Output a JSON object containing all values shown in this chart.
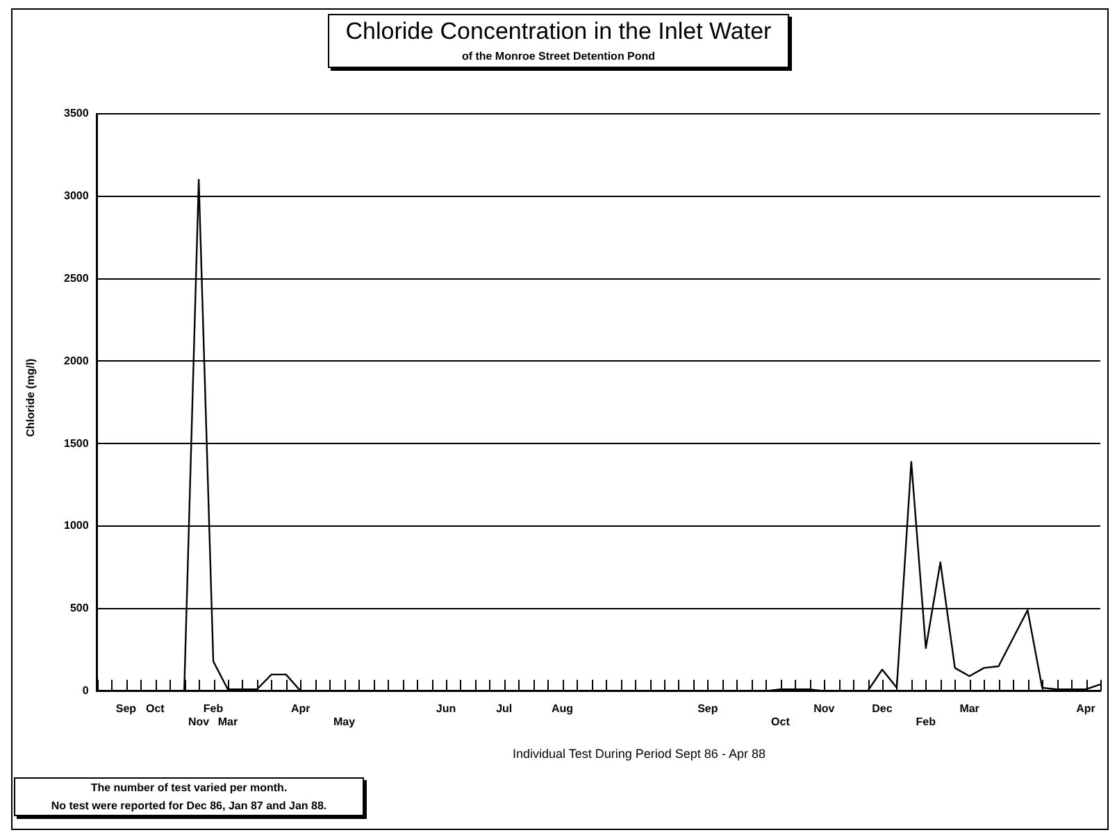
{
  "chart_data": {
    "type": "line",
    "title": "Chloride Concentration in the Inlet Water",
    "subtitle": "of the Monroe Street Detention Pond",
    "xlabel": "Individual Test During Period Sept 86 - Apr 88",
    "ylabel": "Chloride (mg/l)",
    "categories": [
      null,
      null,
      "Sep",
      null,
      "Oct",
      null,
      null,
      "Nov",
      "Feb",
      "Mar",
      null,
      null,
      null,
      null,
      "Apr",
      null,
      null,
      "May",
      null,
      null,
      null,
      null,
      null,
      null,
      "Jun",
      null,
      null,
      null,
      "Jul",
      null,
      null,
      null,
      "Aug",
      null,
      null,
      null,
      null,
      null,
      null,
      null,
      null,
      null,
      "Sep",
      null,
      null,
      null,
      null,
      "Oct",
      null,
      null,
      "Nov",
      null,
      null,
      null,
      "Dec",
      null,
      null,
      "Feb",
      null,
      null,
      "Mar",
      null,
      null,
      null,
      null,
      null,
      null,
      null,
      "Apr",
      null
    ],
    "series": [
      {
        "color": "#000000",
        "values": [
          0,
          0,
          0,
          0,
          0,
          0,
          0,
          3100,
          180,
          10,
          10,
          10,
          100,
          100,
          0,
          0,
          0,
          0,
          0,
          0,
          0,
          0,
          0,
          0,
          0,
          0,
          0,
          0,
          0,
          0,
          0,
          0,
          0,
          0,
          0,
          0,
          0,
          0,
          0,
          0,
          0,
          0,
          0,
          0,
          0,
          0,
          0,
          10,
          10,
          10,
          0,
          0,
          0,
          0,
          130,
          20,
          1390,
          260,
          780,
          140,
          90,
          140,
          150,
          320,
          490,
          20,
          10,
          10,
          10,
          40
        ]
      }
    ],
    "ylim": [
      0,
      3500
    ],
    "yticks": [
      0,
      500,
      1000,
      1500,
      2000,
      2500,
      3000,
      3500
    ],
    "grid": "y",
    "legend": false,
    "marker": "none",
    "line_style": "solid",
    "annotations": [
      "The number of test varied per month.",
      "No test were reported for Dec 86, Jan 87 and Jan 88."
    ]
  }
}
